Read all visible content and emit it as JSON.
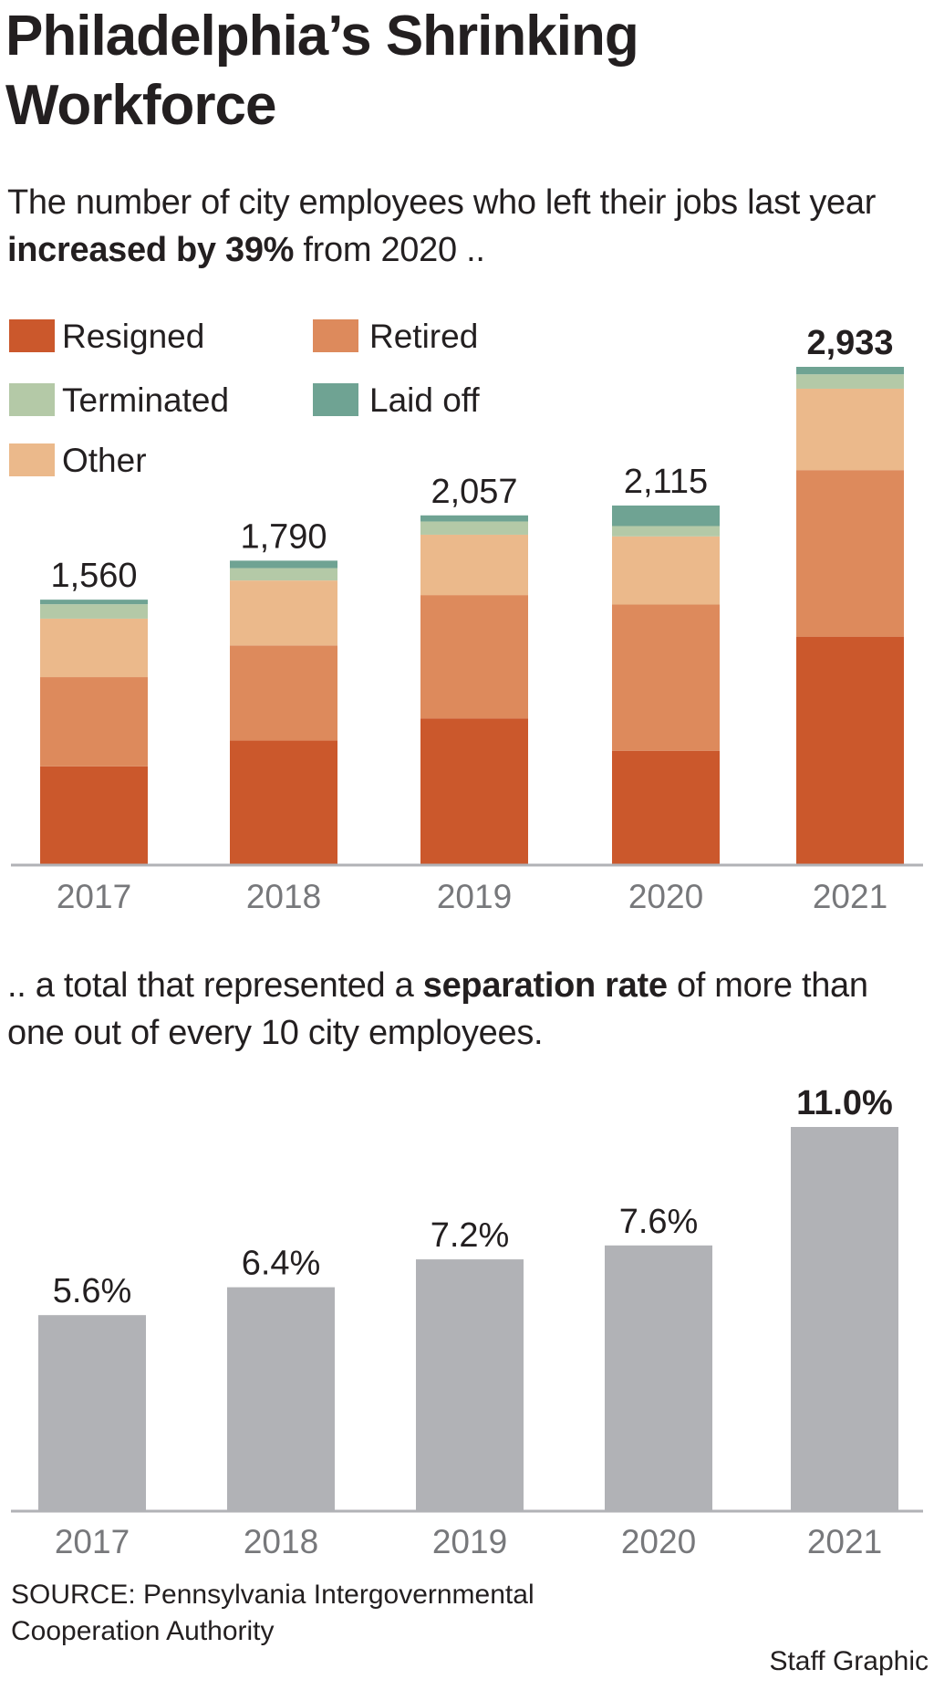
{
  "title": "Philadelphia’s Shrinking Workforce",
  "intro": {
    "before": "The number of city employees who left their jobs last year ",
    "bold": "increased by 39%",
    "after": " from 2020 .."
  },
  "second_text": {
    "before": ".. a total that represented a ",
    "bold": "separation rate",
    "after": " of more than one out of every 10 city employees."
  },
  "source": "SOURCE: Pennsylvania Intergovernmental Cooperation Authority",
  "credit": "Staff Graphic",
  "chart_data": [
    {
      "type": "bar",
      "stacked": true,
      "categories": [
        "2017",
        "2018",
        "2019",
        "2020",
        "2021"
      ],
      "series": [
        {
          "name": "Resigned",
          "color": "#cb582c",
          "values": [
            577,
            730,
            860,
            669,
            1342
          ]
        },
        {
          "name": "Retired",
          "color": "#dd8a5c",
          "values": [
            526,
            560,
            727,
            862,
            982
          ]
        },
        {
          "name": "Other",
          "color": "#ebb98b",
          "values": [
            345,
            383,
            356,
            402,
            480
          ]
        },
        {
          "name": "Terminated",
          "color": "#b4c9a7",
          "values": [
            85,
            73,
            78,
            61,
            85
          ]
        },
        {
          "name": "Laid off",
          "color": "#6fa393",
          "values": [
            27,
            44,
            36,
            121,
            44
          ]
        }
      ],
      "legend_order": [
        "Resigned",
        "Retired",
        "Terminated",
        "Laid off",
        "Other"
      ],
      "totals": [
        1560,
        1790,
        2057,
        2115,
        2933
      ],
      "total_labels": [
        "1,560",
        "1,790",
        "2,057",
        "2,115",
        "2,933"
      ],
      "highlight_index": 4,
      "ylim": [
        0,
        2933
      ],
      "grid": false,
      "legend_position": "top-left"
    },
    {
      "type": "bar",
      "categories": [
        "2017",
        "2018",
        "2019",
        "2020",
        "2021"
      ],
      "values": [
        5.6,
        6.4,
        7.2,
        7.6,
        11.0
      ],
      "labels": [
        "5.6%",
        "6.4%",
        "7.2%",
        "7.6%",
        "11.0%"
      ],
      "color": "#b1b2b6",
      "highlight_index": 4,
      "ylim": [
        0,
        11.0
      ],
      "grid": false
    }
  ]
}
